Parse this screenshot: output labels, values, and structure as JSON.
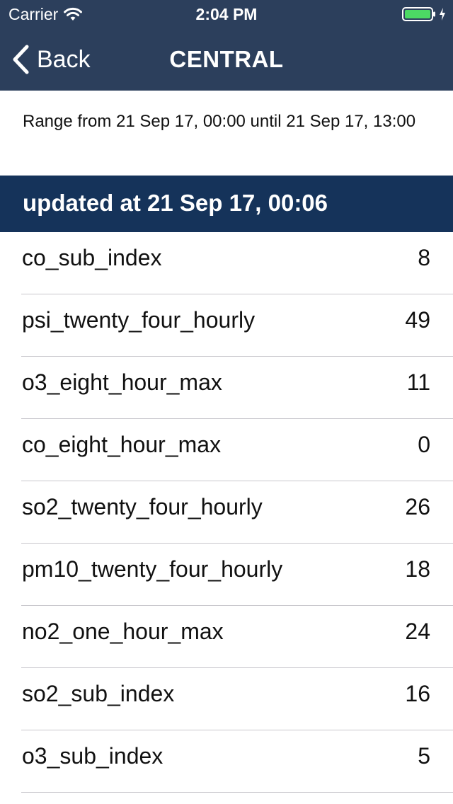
{
  "status_bar": {
    "carrier": "Carrier",
    "time": "2:04 PM",
    "icons": [
      "wifi-icon",
      "battery-icon",
      "charging-icon"
    ],
    "battery_color": "#4cd964"
  },
  "nav": {
    "back_label": "Back",
    "title": "CENTRAL",
    "background": "#2c3f5c"
  },
  "range": {
    "text": "Range from 21 Sep 17, 00:00 until 21 Sep 17, 13:00"
  },
  "section": {
    "header": "updated at 21 Sep 17, 00:06",
    "background": "#15335a"
  },
  "readings": [
    {
      "name": "co_sub_index",
      "value": "8"
    },
    {
      "name": "psi_twenty_four_hourly",
      "value": "49"
    },
    {
      "name": "o3_eight_hour_max",
      "value": "11"
    },
    {
      "name": "co_eight_hour_max",
      "value": "0"
    },
    {
      "name": "so2_twenty_four_hourly",
      "value": "26"
    },
    {
      "name": "pm10_twenty_four_hourly",
      "value": "18"
    },
    {
      "name": "no2_one_hour_max",
      "value": "24"
    },
    {
      "name": "so2_sub_index",
      "value": "16"
    },
    {
      "name": "o3_sub_index",
      "value": "5"
    }
  ]
}
